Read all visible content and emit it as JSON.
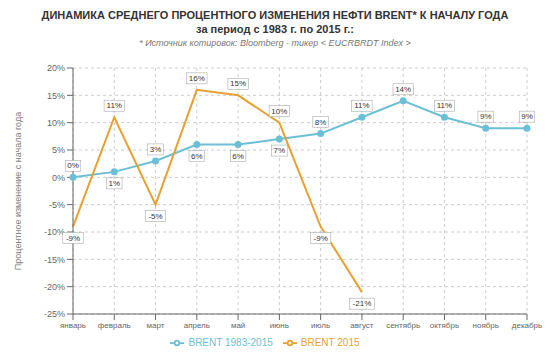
{
  "chart_data": {
    "type": "line",
    "title": "ДИНАМИКА СРЕДНЕГО ПРОЦЕНТНОГО ИЗМЕНЕНИЯ НЕФТИ BRENT* К НАЧАЛУ ГОДА\nза период с 1983 г. по 2015 г.:",
    "subtitle": "* Источник котировок: Bloomberg - тикер < EUCRBRDT Index >",
    "categories": [
      "январь",
      "февраль",
      "март",
      "апрель",
      "май",
      "июнь",
      "июль",
      "август",
      "сентябрь",
      "октябрь",
      "ноябрь",
      "декабрь"
    ],
    "series": [
      {
        "name": "BRENT 1983-2015",
        "color": "#6bbfd6",
        "marker": "circle",
        "values": [
          0,
          1,
          3,
          6,
          6,
          7,
          8,
          11,
          14,
          11,
          9,
          9
        ],
        "value_labels": [
          "0%",
          "1%",
          "3%",
          "6%",
          "6%",
          "7%",
          "8%",
          "11%",
          "14%",
          "11%",
          "9%",
          "9%"
        ]
      },
      {
        "name": "BRENT 2015",
        "color": "#e8a030",
        "marker": "none",
        "values": [
          -9,
          11,
          -5,
          16,
          15,
          10,
          -9,
          -21,
          null,
          null,
          null,
          null
        ],
        "value_labels": [
          "-9%",
          "11%",
          "-5%",
          "16%",
          "15%",
          "10%",
          "-9%",
          "-21%",
          null,
          null,
          null,
          null
        ]
      }
    ],
    "ylabel": "Процентное изменение с начала года",
    "ylim": [
      -25,
      20
    ],
    "yticks": [
      {
        "value": -25,
        "label": "-25%"
      },
      {
        "value": -20,
        "label": "-20%"
      },
      {
        "value": -15,
        "label": "-15%"
      },
      {
        "value": -10,
        "label": "-10%"
      },
      {
        "value": -5,
        "label": "-5%"
      },
      {
        "value": 0,
        "label": "0%"
      },
      {
        "value": 5,
        "label": "5%"
      },
      {
        "value": 10,
        "label": "10%"
      },
      {
        "value": 15,
        "label": "15%"
      },
      {
        "value": 20,
        "label": "20%"
      }
    ],
    "grid": true,
    "legend": "bottom",
    "data_labels": true
  }
}
